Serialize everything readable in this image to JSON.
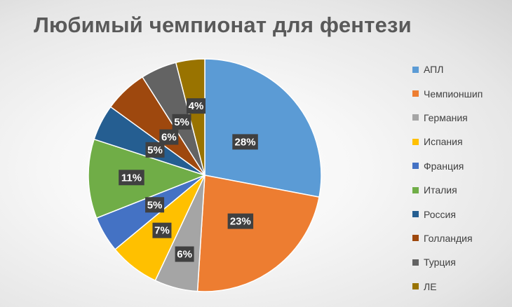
{
  "chart_data": {
    "type": "pie",
    "title": "Любимый чемпионат для фентези",
    "legend_position": "right",
    "categories": [
      "АПЛ",
      "Чемпионшип",
      "Германия",
      "Испания",
      "Франция",
      "Италия",
      "Россия",
      "Голландия",
      "Турция",
      "ЛЕ"
    ],
    "values": [
      28,
      23,
      6,
      7,
      5,
      11,
      5,
      6,
      5,
      4
    ],
    "labels": [
      "28%",
      "23%",
      "6%",
      "7%",
      "5%",
      "11%",
      "5%",
      "6%",
      "5%",
      "4%"
    ],
    "colors": [
      "#5b9bd5",
      "#ed7d31",
      "#a5a5a5",
      "#ffc000",
      "#4472c4",
      "#70ad47",
      "#255e91",
      "#9e480e",
      "#636363",
      "#997300"
    ]
  }
}
